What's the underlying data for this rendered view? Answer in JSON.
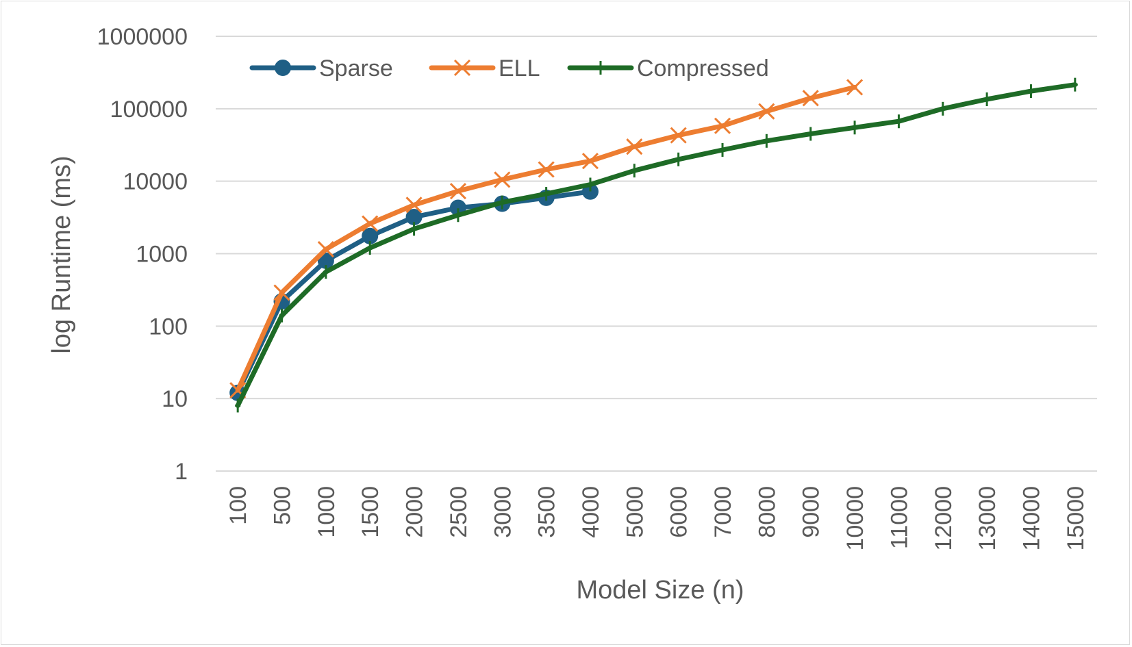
{
  "chart_data": {
    "type": "line",
    "title": "",
    "xlabel": "Model Size (n)",
    "ylabel": "log Runtime (ms)",
    "yscale": "log",
    "ylim": [
      1,
      1000000
    ],
    "yticks": [
      "1",
      "10",
      "100",
      "1000",
      "10000",
      "100000",
      "1000000"
    ],
    "categories": [
      "100",
      "500",
      "1000",
      "1500",
      "2000",
      "2500",
      "3000",
      "3500",
      "4000",
      "5000",
      "6000",
      "7000",
      "8000",
      "9000",
      "10000",
      "11000",
      "12000",
      "13000",
      "14000",
      "15000"
    ],
    "legend_position": "top-left",
    "grid": true,
    "series": [
      {
        "name": "Sparse",
        "color": "#1f5f85",
        "marker": "circle",
        "values": [
          12,
          220,
          800,
          1750,
          3200,
          4300,
          4900,
          5900,
          7200,
          null,
          null,
          null,
          null,
          null,
          null,
          null,
          null,
          null,
          null,
          null
        ]
      },
      {
        "name": "ELL",
        "color": "#ed7d31",
        "marker": "x",
        "values": [
          13,
          290,
          1150,
          2600,
          4700,
          7300,
          10500,
          14500,
          19000,
          30000,
          43000,
          58000,
          92000,
          140000,
          198000,
          null,
          null,
          null,
          null,
          null
        ]
      },
      {
        "name": "Compressed",
        "color": "#1e6b26",
        "marker": "plus",
        "values": [
          8,
          140,
          560,
          1200,
          2200,
          3400,
          5100,
          6700,
          9000,
          14000,
          20000,
          27000,
          36000,
          45000,
          55000,
          67000,
          100000,
          135000,
          175000,
          215000
        ]
      }
    ]
  }
}
